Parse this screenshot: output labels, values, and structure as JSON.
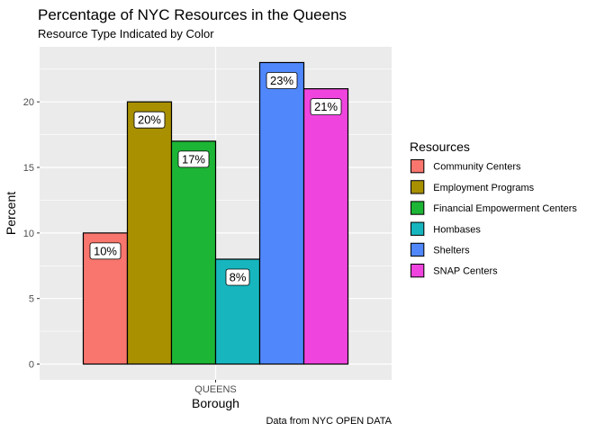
{
  "chart_data": {
    "type": "bar",
    "title": "Percentage of NYC Resources in the Queens",
    "subtitle": "Resource Type Indicated by Color",
    "xlabel": "Borough",
    "ylabel": "Percent",
    "caption": "Data from NYC OPEN DATA",
    "categories": [
      "QUEENS"
    ],
    "y_ticks": [
      "0",
      "5",
      "10",
      "15",
      "20"
    ],
    "ylim": [
      -1.2,
      24.2
    ],
    "grid": true,
    "legend": {
      "title": "Resources",
      "placement": "right"
    },
    "series": [
      {
        "name": "Community Centers",
        "values": [
          10
        ],
        "label": "10%",
        "color": "#F8766D"
      },
      {
        "name": "Employment Programs",
        "values": [
          20
        ],
        "label": "20%",
        "color": "#A89000"
      },
      {
        "name": "Financial Empowerment Centers",
        "values": [
          17
        ],
        "label": "17%",
        "color": "#1DB535"
      },
      {
        "name": "Hombases",
        "values": [
          8
        ],
        "label": "8%",
        "color": "#17B6BF"
      },
      {
        "name": "Shelters",
        "values": [
          23
        ],
        "label": "23%",
        "color": "#5088FC"
      },
      {
        "name": "SNAP Centers",
        "values": [
          21
        ],
        "label": "21%",
        "color": "#EF45DE"
      }
    ],
    "panel_background": "#EBEBEB",
    "gridline_color": "#FFFFFF"
  }
}
